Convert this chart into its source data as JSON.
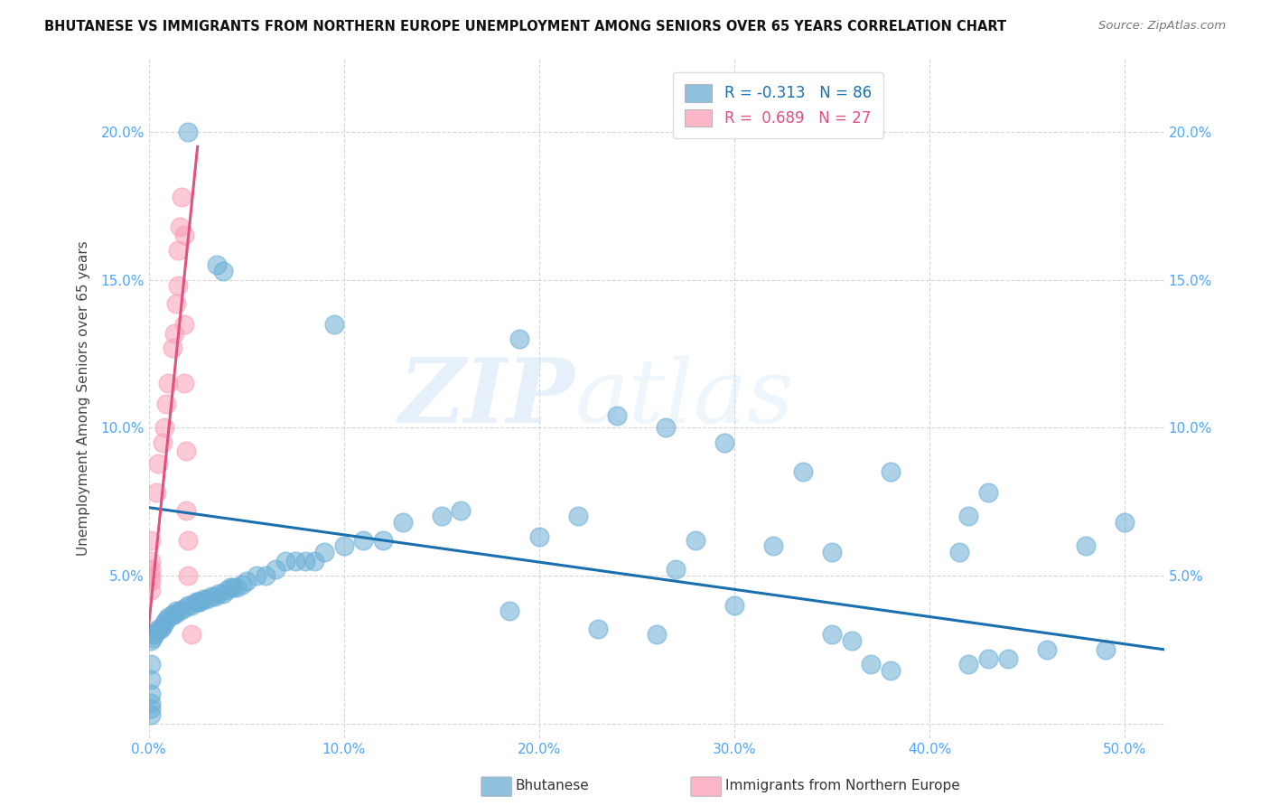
{
  "title": "BHUTANESE VS IMMIGRANTS FROM NORTHERN EUROPE UNEMPLOYMENT AMONG SENIORS OVER 65 YEARS CORRELATION CHART",
  "source": "Source: ZipAtlas.com",
  "ylabel": "Unemployment Among Seniors over 65 years",
  "xlim": [
    0.0,
    0.52
  ],
  "ylim": [
    -0.005,
    0.225
  ],
  "xticks": [
    0.0,
    0.1,
    0.2,
    0.3,
    0.4,
    0.5
  ],
  "xtick_labels": [
    "0.0%",
    "10.0%",
    "20.0%",
    "30.0%",
    "40.0%",
    "50.0%"
  ],
  "yticks": [
    0.0,
    0.05,
    0.1,
    0.15,
    0.2
  ],
  "ytick_labels": [
    "",
    "5.0%",
    "10.0%",
    "15.0%",
    "20.0%"
  ],
  "blue_color": "#6baed6",
  "blue_edge": "#6baed6",
  "pink_color": "#fa9fb5",
  "pink_edge": "#fa9fb5",
  "blue_line_color": "#1a6faf",
  "pink_line_color": "#e05080",
  "blue_R": -0.313,
  "blue_N": 86,
  "pink_R": 0.689,
  "pink_N": 27,
  "watermark": "ZIPatlas",
  "legend_label_blue": "Bhutanese",
  "legend_label_pink": "Immigrants from Northern Europe",
  "blue_scatter": [
    [
      0.02,
      0.2
    ],
    [
      0.035,
      0.155
    ],
    [
      0.038,
      0.153
    ],
    [
      0.095,
      0.135
    ],
    [
      0.19,
      0.13
    ],
    [
      0.24,
      0.104
    ],
    [
      0.265,
      0.1
    ],
    [
      0.295,
      0.095
    ],
    [
      0.335,
      0.085
    ],
    [
      0.38,
      0.085
    ],
    [
      0.43,
      0.078
    ],
    [
      0.5,
      0.068
    ],
    [
      0.48,
      0.06
    ],
    [
      0.415,
      0.058
    ],
    [
      0.42,
      0.07
    ],
    [
      0.35,
      0.058
    ],
    [
      0.32,
      0.06
    ],
    [
      0.28,
      0.062
    ],
    [
      0.27,
      0.052
    ],
    [
      0.22,
      0.07
    ],
    [
      0.2,
      0.063
    ],
    [
      0.16,
      0.072
    ],
    [
      0.15,
      0.07
    ],
    [
      0.13,
      0.068
    ],
    [
      0.12,
      0.062
    ],
    [
      0.11,
      0.062
    ],
    [
      0.1,
      0.06
    ],
    [
      0.09,
      0.058
    ],
    [
      0.085,
      0.055
    ],
    [
      0.08,
      0.055
    ],
    [
      0.075,
      0.055
    ],
    [
      0.07,
      0.055
    ],
    [
      0.065,
      0.052
    ],
    [
      0.06,
      0.05
    ],
    [
      0.055,
      0.05
    ],
    [
      0.05,
      0.048
    ],
    [
      0.048,
      0.047
    ],
    [
      0.045,
      0.046
    ],
    [
      0.043,
      0.046
    ],
    [
      0.042,
      0.046
    ],
    [
      0.04,
      0.045
    ],
    [
      0.038,
      0.044
    ],
    [
      0.036,
      0.044
    ],
    [
      0.034,
      0.043
    ],
    [
      0.032,
      0.043
    ],
    [
      0.03,
      0.042
    ],
    [
      0.028,
      0.042
    ],
    [
      0.026,
      0.041
    ],
    [
      0.025,
      0.041
    ],
    [
      0.024,
      0.041
    ],
    [
      0.022,
      0.04
    ],
    [
      0.02,
      0.04
    ],
    [
      0.018,
      0.039
    ],
    [
      0.016,
      0.038
    ],
    [
      0.014,
      0.038
    ],
    [
      0.013,
      0.037
    ],
    [
      0.012,
      0.037
    ],
    [
      0.01,
      0.036
    ],
    [
      0.009,
      0.035
    ],
    [
      0.008,
      0.034
    ],
    [
      0.007,
      0.033
    ],
    [
      0.006,
      0.032
    ],
    [
      0.005,
      0.032
    ],
    [
      0.004,
      0.031
    ],
    [
      0.003,
      0.03
    ],
    [
      0.002,
      0.029
    ],
    [
      0.001,
      0.028
    ],
    [
      0.001,
      0.02
    ],
    [
      0.001,
      0.015
    ],
    [
      0.001,
      0.01
    ],
    [
      0.001,
      0.007
    ],
    [
      0.001,
      0.005
    ],
    [
      0.001,
      0.003
    ],
    [
      0.185,
      0.038
    ],
    [
      0.23,
      0.032
    ],
    [
      0.26,
      0.03
    ],
    [
      0.3,
      0.04
    ],
    [
      0.35,
      0.03
    ],
    [
      0.36,
      0.028
    ],
    [
      0.37,
      0.02
    ],
    [
      0.38,
      0.018
    ],
    [
      0.42,
      0.02
    ],
    [
      0.43,
      0.022
    ],
    [
      0.44,
      0.022
    ],
    [
      0.46,
      0.025
    ],
    [
      0.49,
      0.025
    ]
  ],
  "pink_scatter": [
    [
      0.001,
      0.062
    ],
    [
      0.001,
      0.055
    ],
    [
      0.001,
      0.052
    ],
    [
      0.001,
      0.05
    ],
    [
      0.001,
      0.048
    ],
    [
      0.001,
      0.045
    ],
    [
      0.004,
      0.078
    ],
    [
      0.005,
      0.088
    ],
    [
      0.007,
      0.095
    ],
    [
      0.008,
      0.1
    ],
    [
      0.009,
      0.108
    ],
    [
      0.01,
      0.115
    ],
    [
      0.012,
      0.127
    ],
    [
      0.013,
      0.132
    ],
    [
      0.014,
      0.142
    ],
    [
      0.015,
      0.148
    ],
    [
      0.015,
      0.16
    ],
    [
      0.016,
      0.168
    ],
    [
      0.017,
      0.178
    ],
    [
      0.018,
      0.165
    ],
    [
      0.018,
      0.135
    ],
    [
      0.018,
      0.115
    ],
    [
      0.019,
      0.092
    ],
    [
      0.019,
      0.072
    ],
    [
      0.02,
      0.062
    ],
    [
      0.02,
      0.05
    ],
    [
      0.022,
      0.03
    ]
  ],
  "blue_trend_x": [
    0.0,
    0.52
  ],
  "blue_trend_y": [
    0.073,
    0.025
  ],
  "pink_trend_x": [
    -0.002,
    0.025
  ],
  "pink_trend_y": [
    0.02,
    0.195
  ]
}
